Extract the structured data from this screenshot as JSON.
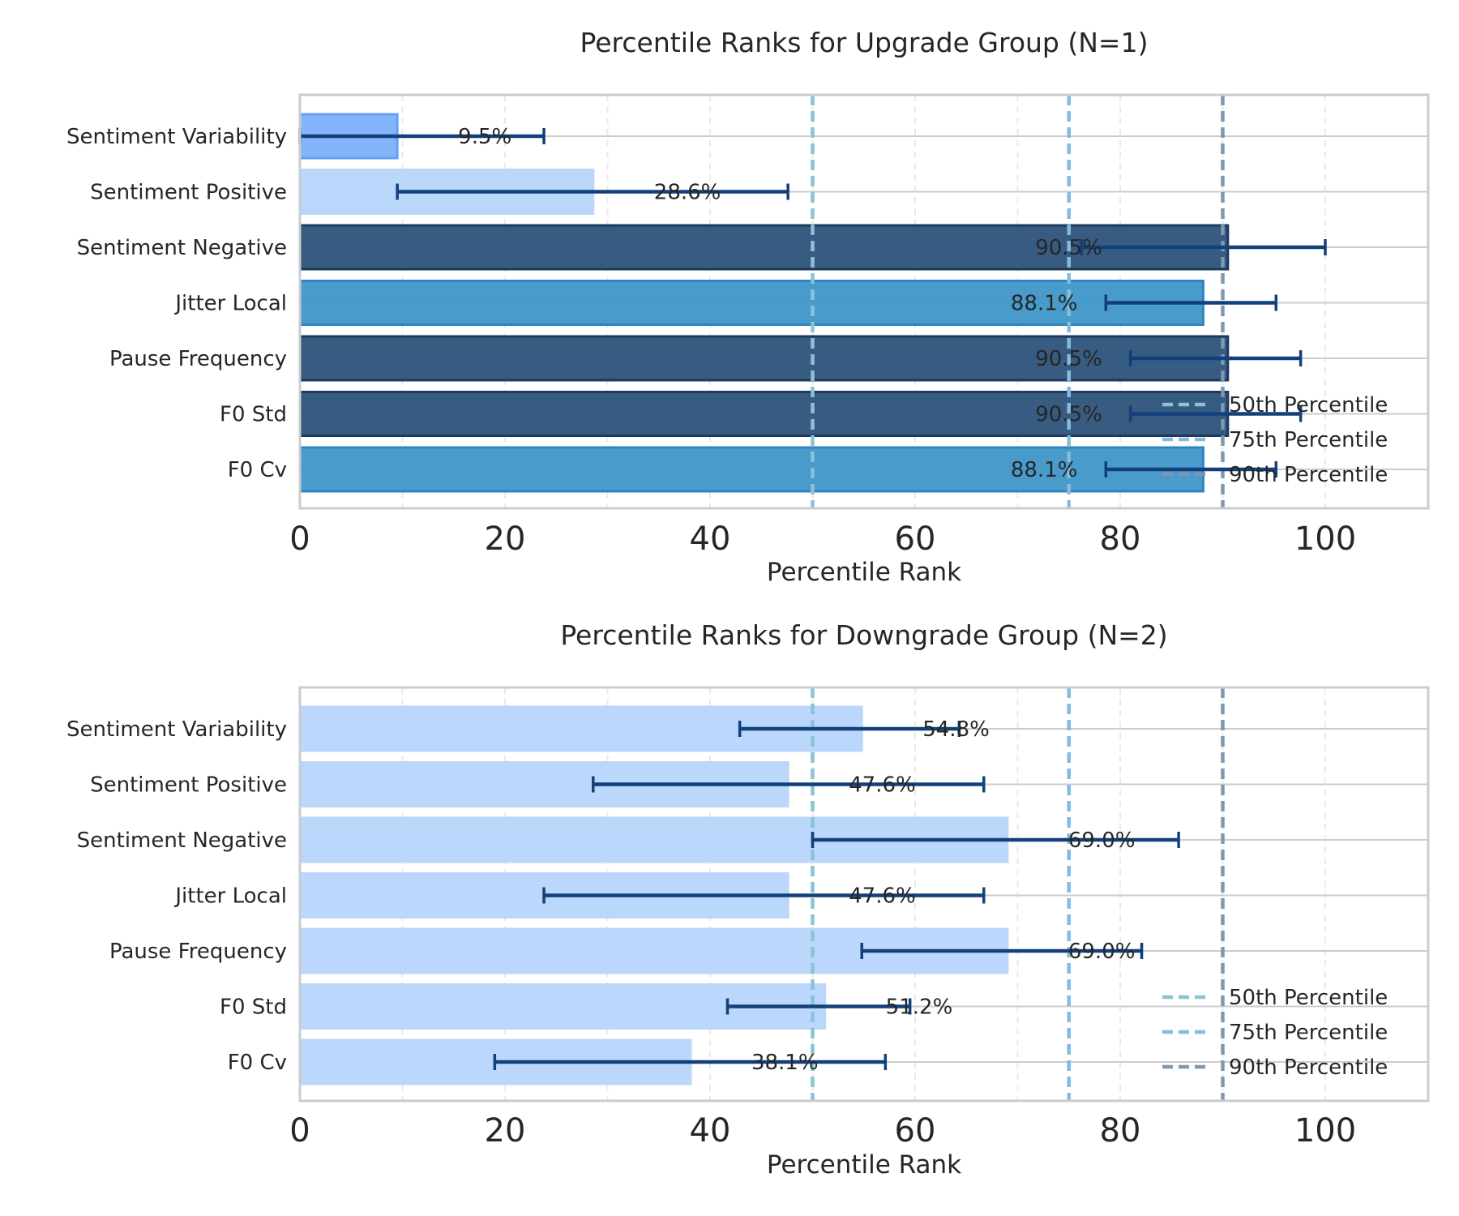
{
  "chart_data": [
    {
      "type": "bar",
      "orientation": "horizontal",
      "title": "Percentile Ranks for Upgrade Group (N=1)",
      "xlabel": "Percentile Rank",
      "ylabel": "",
      "xlim": [
        0,
        110
      ],
      "xticks": [
        0,
        20,
        40,
        60,
        80,
        100
      ],
      "grid": true,
      "categories": [
        "Sentiment Variability",
        "Sentiment Positive",
        "Sentiment Negative",
        "Jitter Local",
        "Pause Frequency",
        "F0 Std",
        "F0 Cv"
      ],
      "values": [
        9.5,
        28.6,
        90.5,
        88.1,
        90.5,
        90.5,
        88.1
      ],
      "value_labels": [
        "9.5%",
        "28.6%",
        "90.5%",
        "88.1%",
        "90.5%",
        "90.5%",
        "88.1%"
      ],
      "error_low": [
        0.0,
        9.5,
        76.2,
        78.6,
        81.0,
        81.0,
        78.6
      ],
      "error_high": [
        23.8,
        47.6,
        100.0,
        95.2,
        97.6,
        97.6,
        95.2
      ],
      "bar_colors": [
        "#82b4fa",
        "#bad6fb",
        "#34587e",
        "#4499c9",
        "#34587e",
        "#34587e",
        "#4499c9"
      ],
      "bar_edges": [
        "#62a0f5",
        "#bad6fb",
        "#1c3a5e",
        "#2f86bf",
        "#1c3a5e",
        "#1c3a5e",
        "#2f86bf"
      ],
      "reference_lines": [
        {
          "name": "50th Percentile",
          "value": 50,
          "color": "#8cc1d6"
        },
        {
          "name": "75th Percentile",
          "value": 75,
          "color": "#86bbdb"
        },
        {
          "name": "90th Percentile",
          "value": 90,
          "color": "#7f97b1"
        }
      ],
      "legend_position": "lower-right"
    },
    {
      "type": "bar",
      "orientation": "horizontal",
      "title": "Percentile Ranks for Downgrade Group (N=2)",
      "xlabel": "Percentile Rank",
      "ylabel": "",
      "xlim": [
        0,
        110
      ],
      "xticks": [
        0,
        20,
        40,
        60,
        80,
        100
      ],
      "grid": true,
      "categories": [
        "Sentiment Variability",
        "Sentiment Positive",
        "Sentiment Negative",
        "Jitter Local",
        "Pause Frequency",
        "F0 Std",
        "F0 Cv"
      ],
      "values": [
        54.8,
        47.6,
        69.0,
        47.6,
        69.0,
        51.2,
        38.1
      ],
      "value_labels": [
        "54.8%",
        "47.6%",
        "69.0%",
        "47.6%",
        "69.0%",
        "51.2%",
        "38.1%"
      ],
      "error_low": [
        42.9,
        28.6,
        50.0,
        23.8,
        54.8,
        41.7,
        19.0
      ],
      "error_high": [
        64.3,
        66.7,
        85.7,
        66.7,
        82.1,
        59.5,
        57.1
      ],
      "bar_colors": [
        "#bad6fb",
        "#bad6fb",
        "#bad6fb",
        "#bad6fb",
        "#bad6fb",
        "#bad6fb",
        "#bad6fb"
      ],
      "bar_edges": [
        "#bad6fb",
        "#bad6fb",
        "#bad6fb",
        "#bad6fb",
        "#bad6fb",
        "#bad6fb",
        "#bad6fb"
      ],
      "reference_lines": [
        {
          "name": "50th Percentile",
          "value": 50,
          "color": "#8cc1d6"
        },
        {
          "name": "75th Percentile",
          "value": 75,
          "color": "#86bbdb"
        },
        {
          "name": "90th Percentile",
          "value": 90,
          "color": "#7f97b1"
        }
      ],
      "legend_position": "lower-right"
    }
  ],
  "colors": {
    "error_bar": "#12407a",
    "frame": "#cccccc",
    "grid_major": "#cccccc",
    "grid_minor": "#eaeaea"
  }
}
